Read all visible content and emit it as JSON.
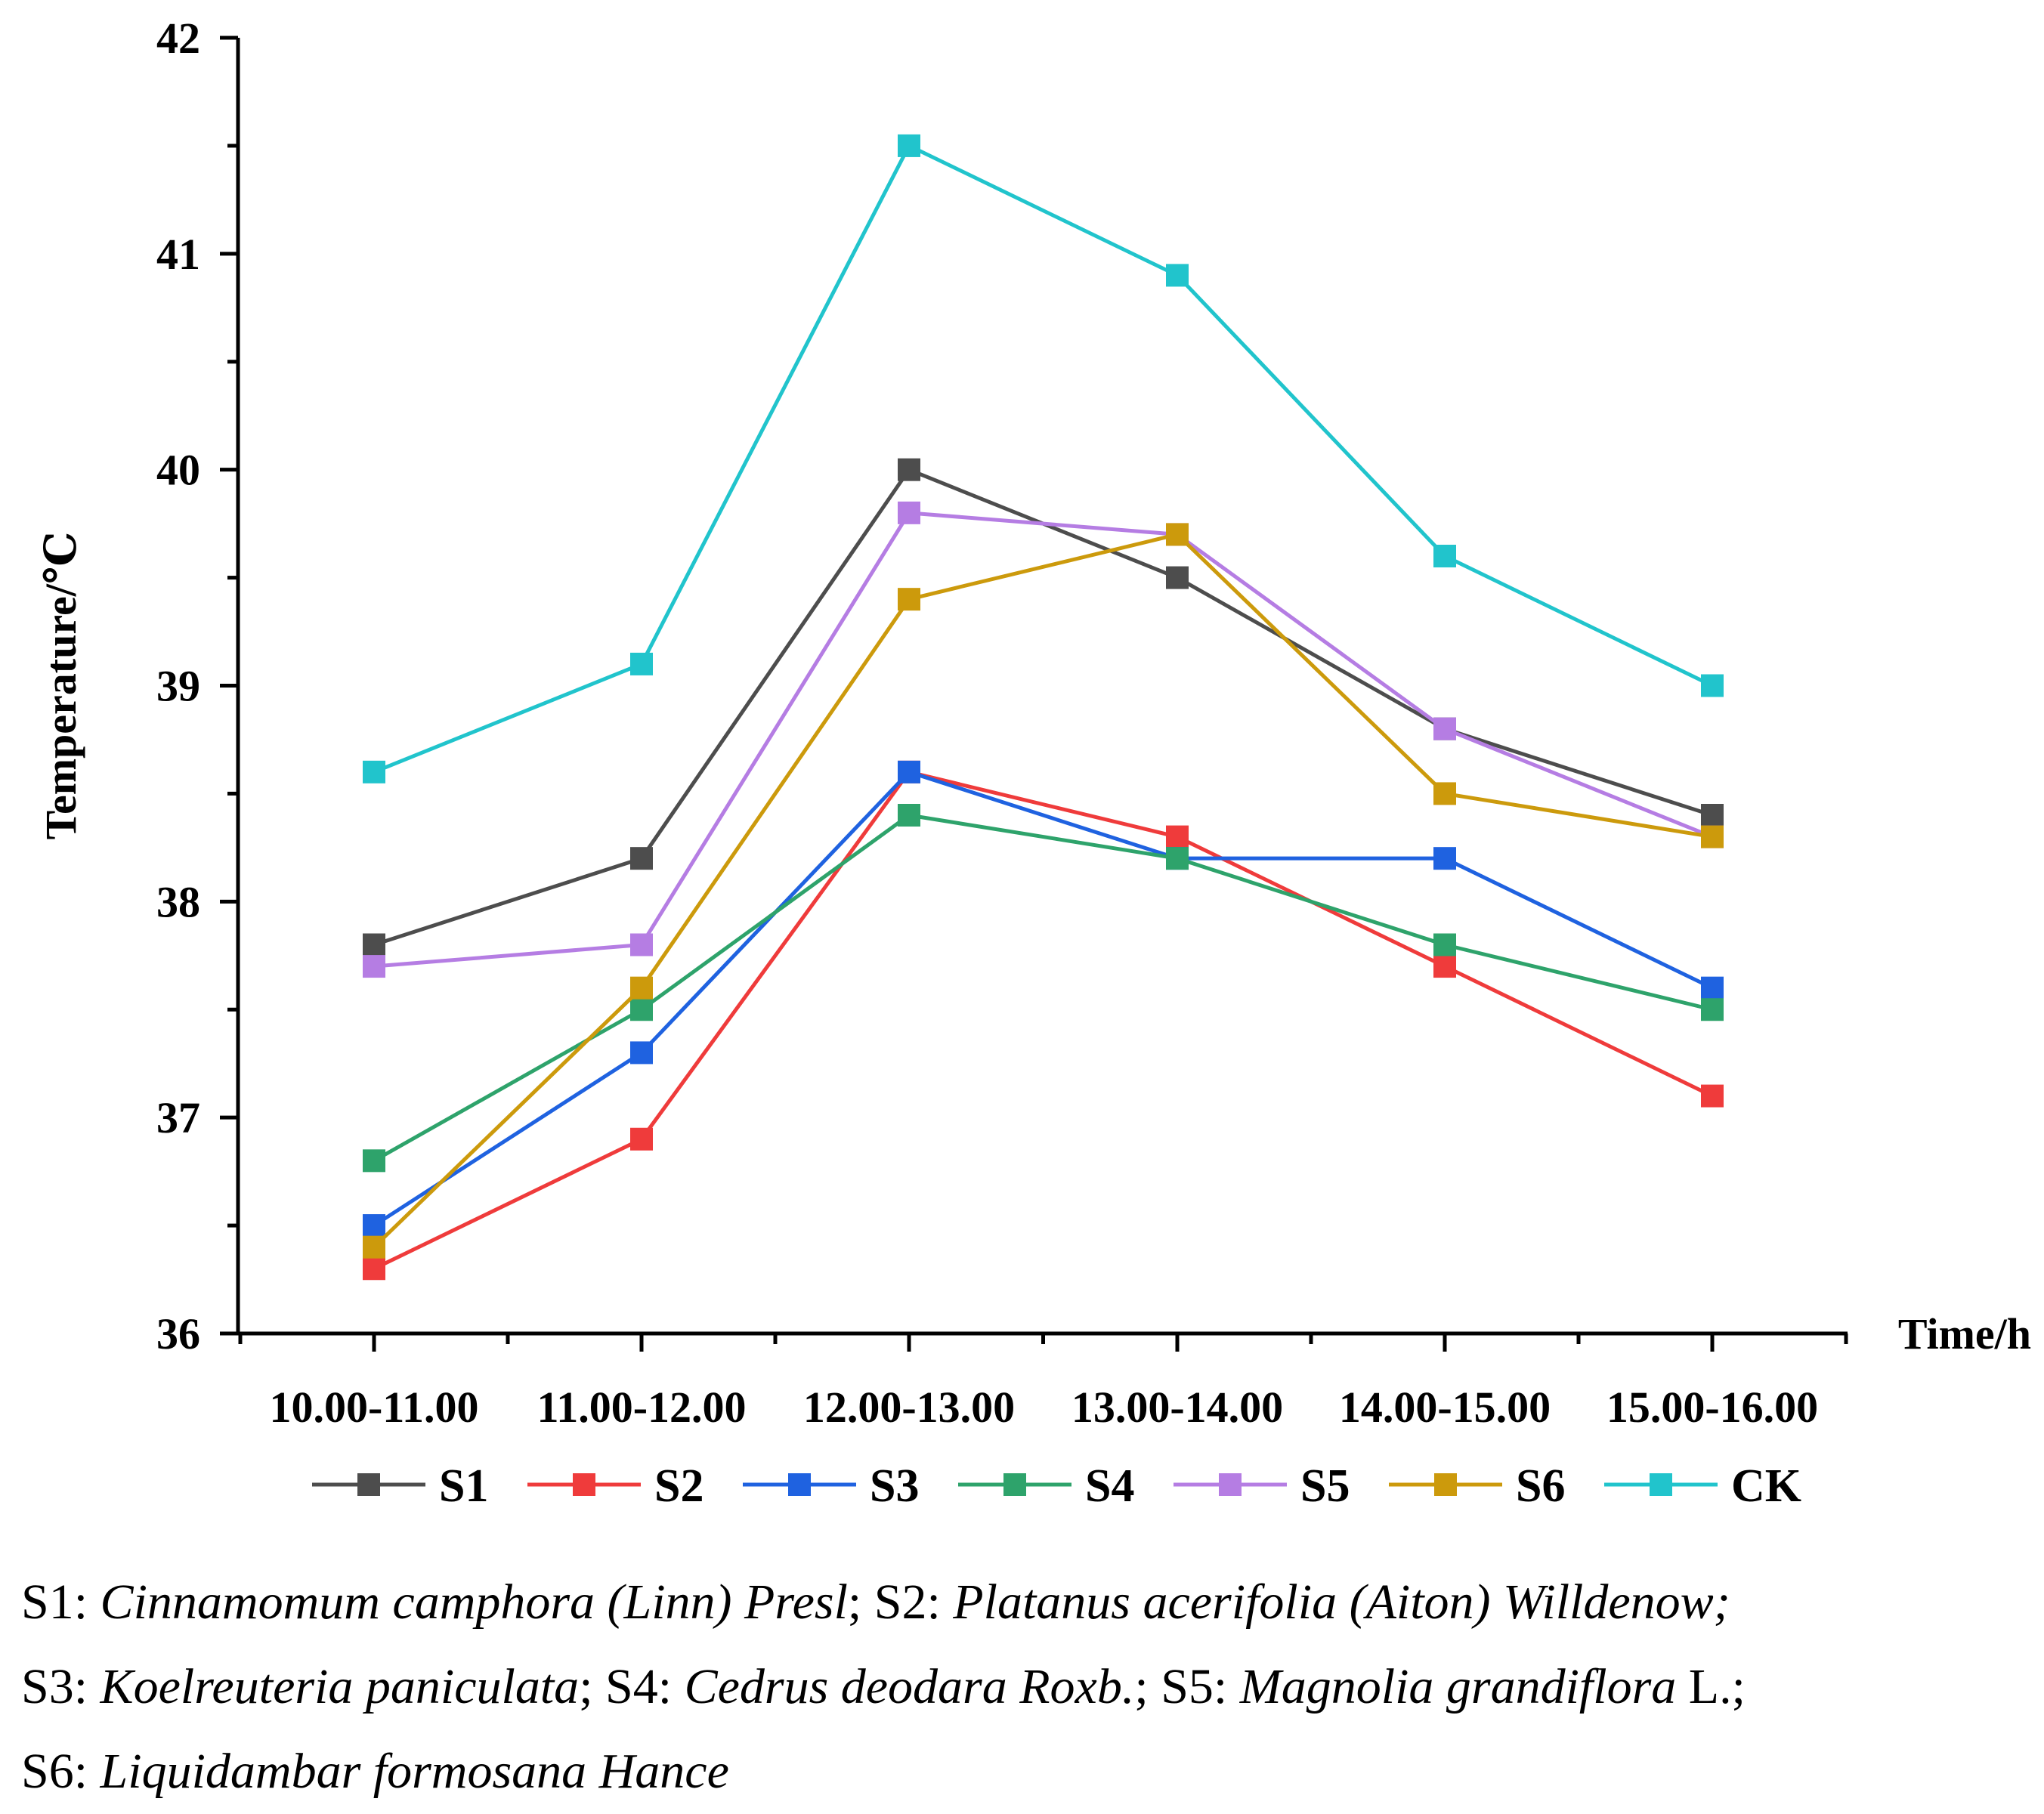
{
  "chart_data": {
    "type": "line",
    "title": "",
    "xlabel": "Time/h",
    "ylabel": "Temperature/℃",
    "ylim": [
      36,
      42
    ],
    "yticks": [
      36,
      37,
      38,
      39,
      40,
      41,
      42
    ],
    "categories": [
      "10.00-11.00",
      "11.00-12.00",
      "12.00-13.00",
      "13.00-14.00",
      "14.00-15.00",
      "15.00-16.00"
    ],
    "series": [
      {
        "name": "S1",
        "color": "#4d4d4d",
        "values": [
          37.8,
          38.2,
          40.0,
          39.5,
          38.8,
          38.4
        ]
      },
      {
        "name": "S2",
        "color": "#ef3b3b",
        "values": [
          36.3,
          36.9,
          38.6,
          38.3,
          37.7,
          37.1
        ]
      },
      {
        "name": "S3",
        "color": "#1f62e0",
        "values": [
          36.5,
          37.3,
          38.6,
          38.2,
          38.2,
          37.6
        ]
      },
      {
        "name": "S4",
        "color": "#2ea36b",
        "values": [
          36.8,
          37.5,
          38.4,
          38.2,
          37.8,
          37.5
        ]
      },
      {
        "name": "S5",
        "color": "#b57de3",
        "values": [
          37.7,
          37.8,
          39.8,
          39.7,
          38.8,
          38.3
        ]
      },
      {
        "name": "S6",
        "color": "#cc9a0c",
        "values": [
          36.4,
          37.6,
          39.4,
          39.7,
          38.5,
          38.3
        ]
      },
      {
        "name": "CK",
        "color": "#21c4cc",
        "values": [
          38.6,
          39.1,
          41.5,
          40.9,
          39.6,
          39.0
        ]
      }
    ],
    "legend_position": "bottom",
    "grid": false
  },
  "caption": {
    "line1": [
      {
        "t": "S1: ",
        "i": false
      },
      {
        "t": "Cinnamomum camphora (Linn) Presl",
        "i": true
      },
      {
        "t": "; S2: ",
        "i": false
      },
      {
        "t": "Platanus acerifolia (Aiton) Willdenow;",
        "i": true
      }
    ],
    "line2": [
      {
        "t": "S3: ",
        "i": false
      },
      {
        "t": "Koelreuteria paniculata",
        "i": true
      },
      {
        "t": "; S4: ",
        "i": false
      },
      {
        "t": "Cedrus deodara Roxb.",
        "i": true
      },
      {
        "t": "; S5: ",
        "i": false
      },
      {
        "t": "Magnolia grandiflora",
        "i": true
      },
      {
        "t": " L.;",
        "i": false
      }
    ],
    "line3": [
      {
        "t": "S6: ",
        "i": false
      },
      {
        "t": "Liquidambar formosana Hance",
        "i": true
      }
    ]
  }
}
